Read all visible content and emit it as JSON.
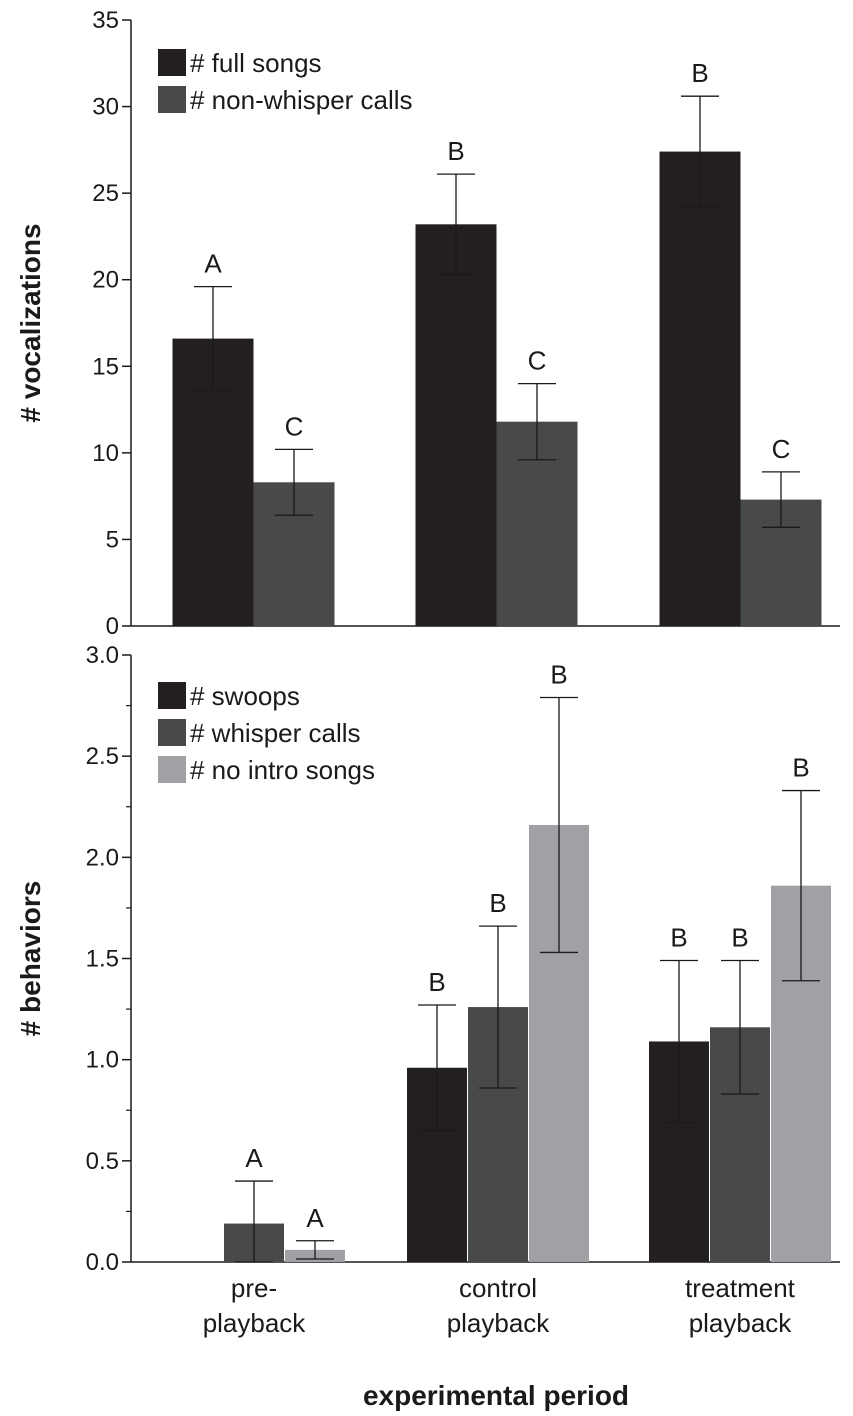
{
  "chart_data": [
    {
      "type": "bar",
      "ylabel": "# vocalizations",
      "ylim": [
        0,
        35
      ],
      "yticks": [
        0,
        5,
        10,
        15,
        20,
        25,
        30,
        35
      ],
      "ytick_labels": [
        "0",
        "5",
        "10",
        "15",
        "20",
        "25",
        "30",
        "35"
      ],
      "grid": false,
      "legend_position": "top-left",
      "categories": [
        "pre-playback",
        "control playback",
        "treatment playback"
      ],
      "series": [
        {
          "name": "# full songs",
          "color": "#231f20",
          "values": [
            16.6,
            23.2,
            27.4
          ],
          "error": [
            3.0,
            2.9,
            3.2
          ],
          "letters": [
            "A",
            "B",
            "B"
          ]
        },
        {
          "name": "# non-whisper calls",
          "color": "#48494b",
          "values": [
            8.3,
            11.8,
            7.3
          ],
          "error": [
            1.9,
            2.2,
            1.6
          ],
          "letters": [
            "C",
            "C",
            "C"
          ]
        }
      ]
    },
    {
      "type": "bar",
      "ylabel": "# behaviors",
      "xlabel": "experimental period",
      "ylim": [
        0,
        3.0
      ],
      "yticks": [
        0,
        0.5,
        1.0,
        1.5,
        2.0,
        2.5,
        3.0
      ],
      "ytick_labels": [
        "0.0",
        "0.5",
        "1.0",
        "1.5",
        "2.0",
        "2.5",
        "3.0"
      ],
      "grid": false,
      "legend_position": "top-left",
      "categories": [
        "pre-\nplayback",
        "control\nplayback",
        "treatment\nplayback"
      ],
      "category_labels": [
        [
          "pre-",
          "playback"
        ],
        [
          "control",
          "playback"
        ],
        [
          "treatment",
          "playback"
        ]
      ],
      "series": [
        {
          "name": "# swoops",
          "color": "#231f20",
          "values": [
            0,
            0.96,
            1.09
          ],
          "error": [
            null,
            0.31,
            0.4
          ],
          "letters": [
            "",
            "B",
            "B"
          ]
        },
        {
          "name": "# whisper calls",
          "color": "#48494b",
          "values": [
            0.19,
            1.26,
            1.16
          ],
          "error": [
            0.21,
            0.4,
            0.33
          ],
          "letters": [
            "A",
            "B",
            "B"
          ]
        },
        {
          "name": "# no intro songs",
          "color": "#a0a1a4",
          "values": [
            0.06,
            2.16,
            1.86
          ],
          "error": [
            0.045,
            0.63,
            0.47
          ],
          "letters": [
            "A",
            "B",
            "B"
          ]
        }
      ]
    }
  ]
}
